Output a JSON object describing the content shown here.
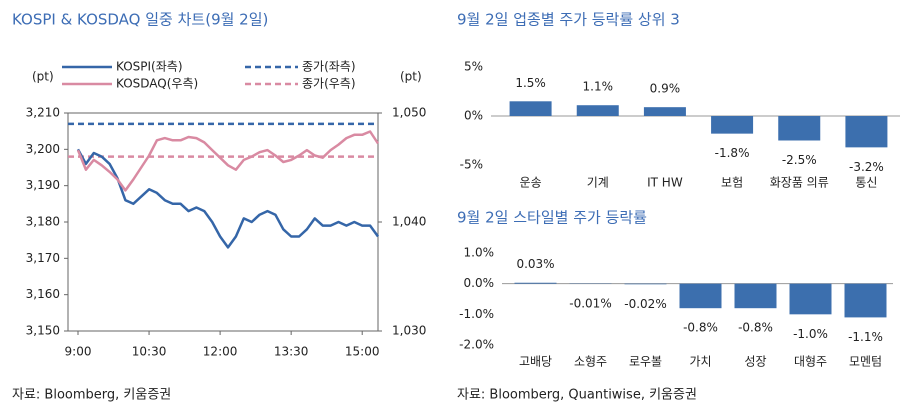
{
  "chart_data": [
    {
      "type": "line",
      "title": "KOSPI & KOSDAQ 일중 차트(9월 2일)",
      "y_label": "(pt)",
      "y2_label": "(pt)",
      "x": [
        "9:00",
        "9:10",
        "9:20",
        "9:30",
        "9:40",
        "9:50",
        "10:00",
        "10:10",
        "10:20",
        "10:30",
        "10:40",
        "10:50",
        "11:00",
        "11:10",
        "11:20",
        "11:30",
        "11:40",
        "11:50",
        "12:00",
        "12:10",
        "12:20",
        "12:30",
        "12:40",
        "12:50",
        "13:00",
        "13:10",
        "13:20",
        "13:30",
        "13:40",
        "13:50",
        "14:00",
        "14:10",
        "14:20",
        "14:30",
        "14:40",
        "14:50",
        "15:00",
        "15:10",
        "15:20"
      ],
      "xticks": [
        "9:00",
        "10:30",
        "12:00",
        "13:30",
        "15:00"
      ],
      "ylim": [
        3150,
        3210
      ],
      "yticks": [
        {
          "value": 3150,
          "label": "3,150"
        },
        {
          "value": 3160,
          "label": "3,160"
        },
        {
          "value": 3170,
          "label": "3,170"
        },
        {
          "value": 3180,
          "label": "3,180"
        },
        {
          "value": 3190,
          "label": "3,190"
        },
        {
          "value": 3200,
          "label": "3,200"
        },
        {
          "value": 3210,
          "label": "3,210"
        }
      ],
      "y2lim": [
        1030,
        1050
      ],
      "y2ticks": [
        {
          "value": 1030,
          "label": "1,030"
        },
        {
          "value": 1040,
          "label": "1,040"
        },
        {
          "value": 1050,
          "label": "1,050"
        }
      ],
      "series": [
        {
          "name": "KOSPI(좌측)",
          "color": "#3566a8",
          "values": [
            3200,
            3196,
            3199,
            3198,
            3196,
            3192,
            3186,
            3185,
            3187,
            3189,
            3188,
            3186,
            3185,
            3185,
            3183,
            3184,
            3183,
            3180,
            3176,
            3173,
            3176,
            3181,
            3180,
            3182,
            3183,
            3182,
            3178,
            3176,
            3176,
            3178,
            3181,
            3179,
            3179,
            3180,
            3179,
            3180,
            3179,
            3179,
            3176
          ]
        },
        {
          "name": "KOSDAQ(우측)",
          "color": "#d98aa2",
          "axis": "y2",
          "values": [
            1046.6,
            1044.8,
            1045.7,
            1045.2,
            1044.6,
            1043.9,
            1042.9,
            1043.9,
            1045.0,
            1046.1,
            1047.5,
            1047.7,
            1047.5,
            1047.5,
            1047.8,
            1047.7,
            1047.3,
            1046.6,
            1045.9,
            1045.2,
            1044.8,
            1045.7,
            1046.0,
            1046.4,
            1046.6,
            1046.1,
            1045.5,
            1045.7,
            1046.1,
            1046.6,
            1046.1,
            1045.9,
            1046.6,
            1047.1,
            1047.7,
            1048.0,
            1048.0,
            1048.3,
            1047.2
          ]
        }
      ],
      "hlines": [
        {
          "name": "종가(좌측)",
          "value": 3207,
          "color": "#3566a8"
        },
        {
          "name": "종가(우측)",
          "value": 1046,
          "axis": "y2",
          "color": "#d98aa2"
        }
      ],
      "source": "자료: Bloomberg, 키움증권"
    },
    {
      "type": "bar",
      "title": "9월 2일 업종별 주가 등락률 상위 3",
      "categories": [
        "운송",
        "기계",
        "IT HW",
        "보험",
        "화장품 의류",
        "통신"
      ],
      "values": [
        1.5,
        1.1,
        0.9,
        -1.8,
        -2.5,
        -3.2
      ],
      "value_labels": [
        "1.5%",
        "1.1%",
        "0.9%",
        "-1.8%",
        "-2.5%",
        "-3.2%"
      ],
      "color": "#3c6fae",
      "ylim": [
        -5,
        5
      ],
      "yticks": [
        {
          "value": 5,
          "label": "5%"
        },
        {
          "value": 0,
          "label": "0%"
        },
        {
          "value": -5,
          "label": "-5%"
        }
      ]
    },
    {
      "type": "bar",
      "title": "9월 2일 스타일별 주가 등락률",
      "categories": [
        "고배당",
        "소형주",
        "로우볼",
        "가치",
        "성장",
        "대형주",
        "모멘텀"
      ],
      "values": [
        0.03,
        -0.01,
        -0.02,
        -0.8,
        -0.8,
        -1.0,
        -1.1
      ],
      "value_labels": [
        "0.03%",
        "-0.01%",
        "-0.02%",
        "-0.8%",
        "-0.8%",
        "-1.0%",
        "-1.1%"
      ],
      "color": "#3c6fae",
      "ylim": [
        -2,
        1
      ],
      "yticks": [
        {
          "value": 1,
          "label": "1.0%"
        },
        {
          "value": 0,
          "label": "0.0%"
        },
        {
          "value": -1,
          "label": "-1.0%"
        },
        {
          "value": -2,
          "label": "-2.0%"
        }
      ],
      "source": "자료: Bloomberg, Quantiwise, 키움증권"
    }
  ]
}
